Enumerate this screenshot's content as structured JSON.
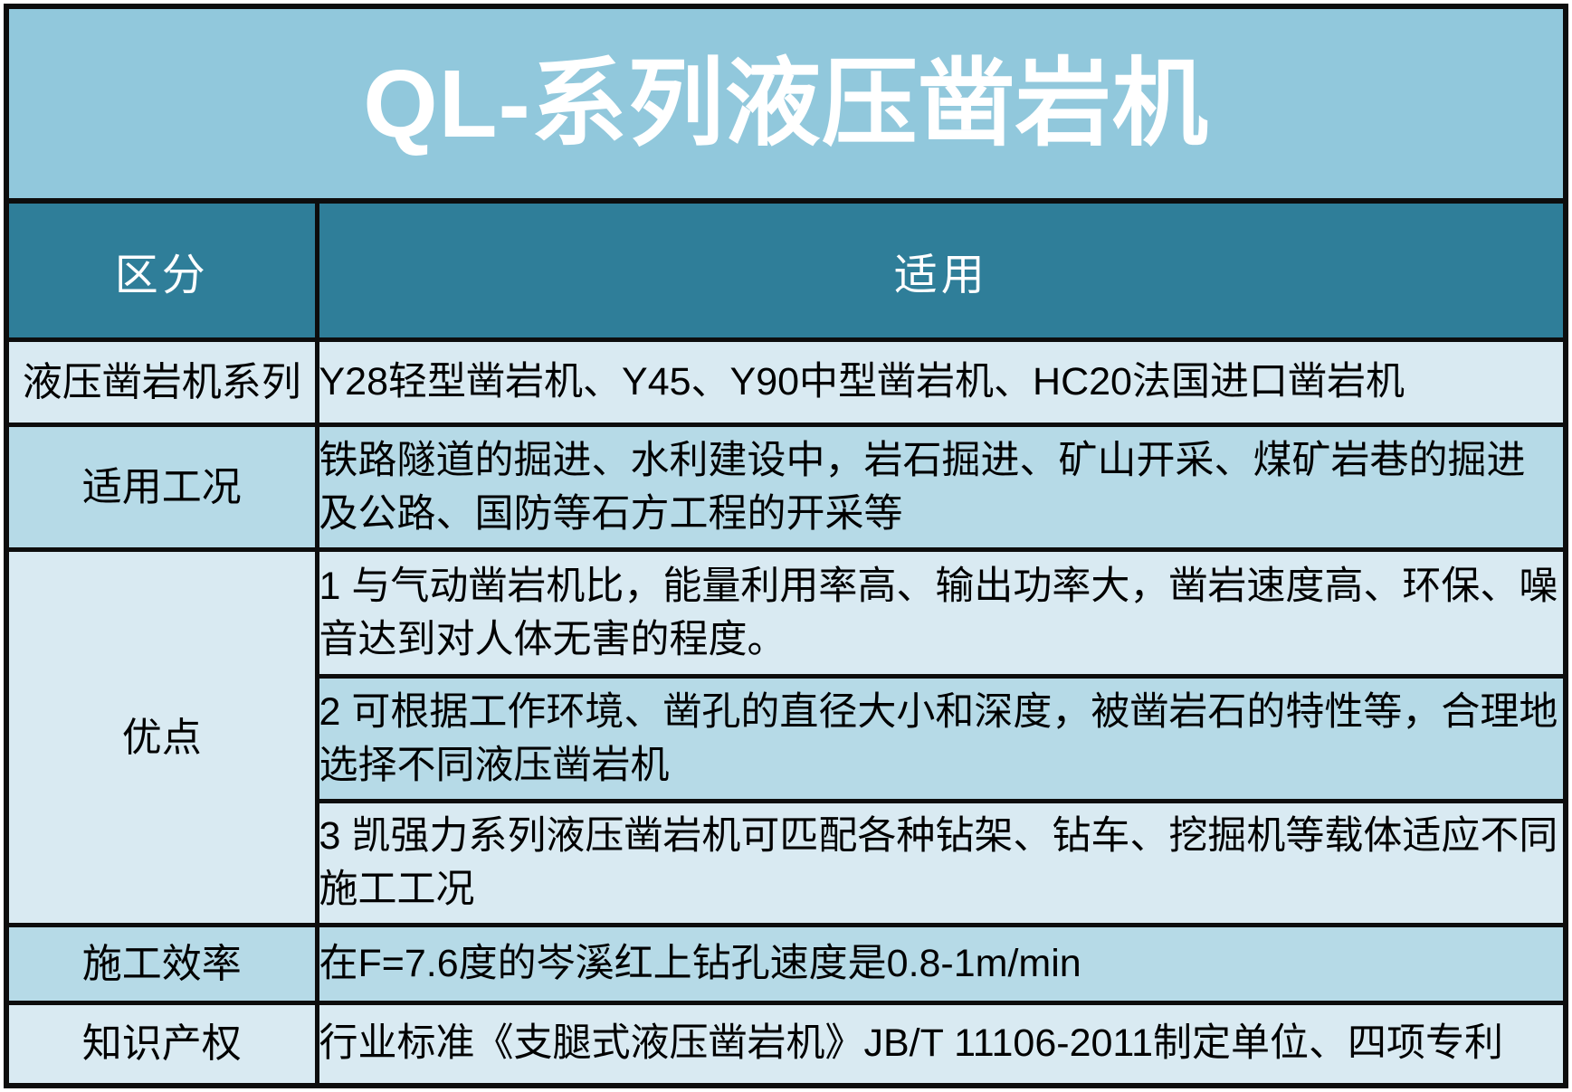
{
  "title": "QL-系列液压凿岩机",
  "colors": {
    "title_bg": "#91C8DC",
    "header_bg": "#2F7E99",
    "row_light": "#D9EAF2",
    "row_medium": "#B6DAE7",
    "border": "#0d0d0d",
    "header_text": "#ffffff",
    "body_text": "#000000"
  },
  "table": {
    "header": {
      "category": "区分",
      "applicable": "适用"
    },
    "rows": [
      {
        "label": "液压凿岩机系列",
        "content": "Y28轻型凿岩机、Y45、Y90中型凿岩机、HC20法国进口凿岩机"
      },
      {
        "label": "适用工况",
        "content": "铁路隧道的掘进、水利建设中，岩石掘进、矿山开采、煤矿岩巷的掘进及公路、国防等石方工程的开采等"
      },
      {
        "label": "优点",
        "items": [
          "1 与气动凿岩机比，能量利用率高、输出功率大，凿岩速度高、环保、噪音达到对人体无害的程度。",
          "2 可根据工作环境、凿孔的直径大小和深度，被凿岩石的特性等，合理地选择不同液压凿岩机",
          "3 凯强力系列液压凿岩机可匹配各种钻架、钻车、挖掘机等载体适应不同施工工况"
        ]
      },
      {
        "label": "施工效率",
        "content": "在F=7.6度的岑溪红上钻孔速度是0.8-1m/min"
      },
      {
        "label": "知识产权",
        "content": "行业标准《支腿式液压凿岩机》JB/T 11106-2011制定单位、四项专利"
      }
    ]
  }
}
